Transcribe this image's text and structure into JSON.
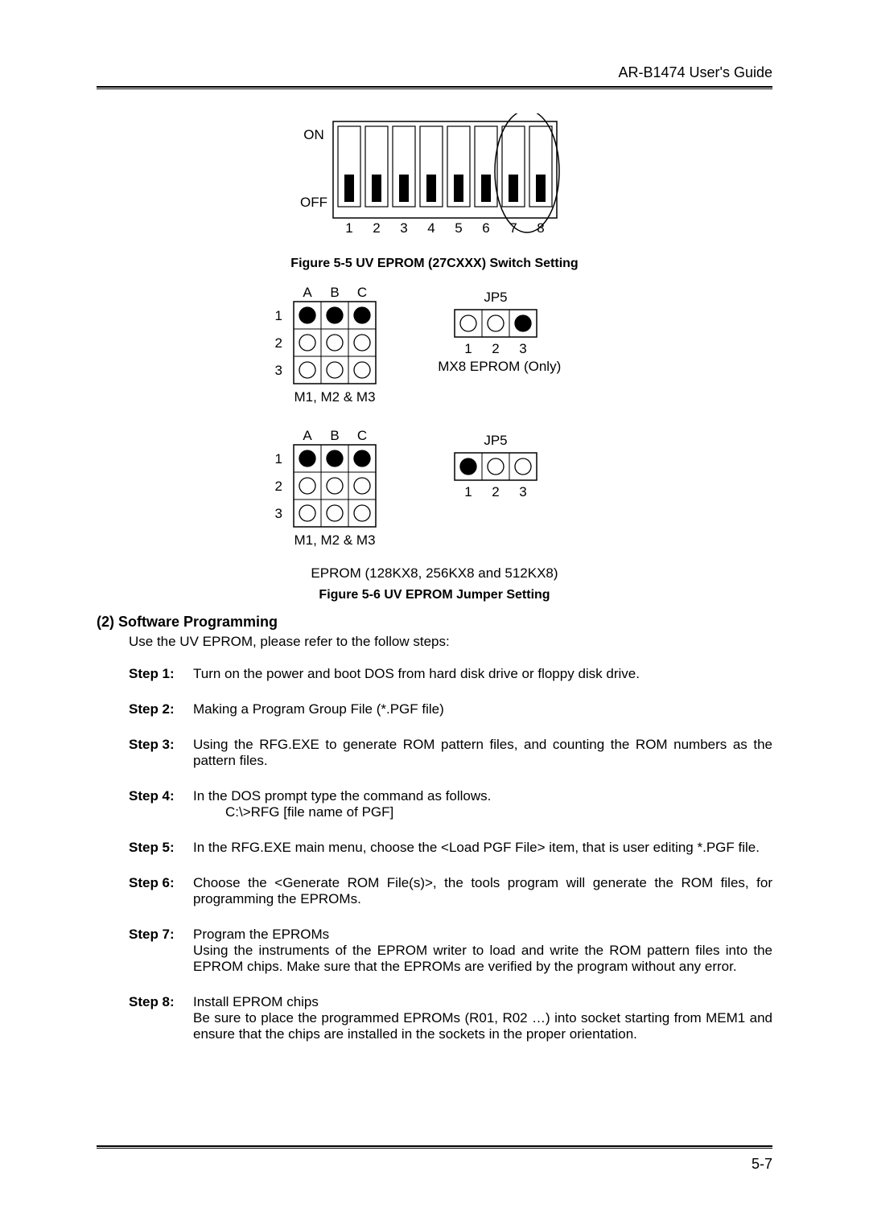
{
  "header": {
    "title": "AR-B1474 User's Guide"
  },
  "dip": {
    "on_label": "ON",
    "off_label": "OFF",
    "num_switches": 8,
    "switch_numbers": [
      "1",
      "2",
      "3",
      "4",
      "5",
      "6",
      "7",
      "8"
    ],
    "positions": [
      "OFF",
      "OFF",
      "OFF",
      "OFF",
      "OFF",
      "OFF",
      "OFF",
      "OFF"
    ],
    "circle_last_two": true,
    "slot_fill": "#ffffff",
    "slot_stroke": "#000000",
    "knob_fill": "#000000",
    "outline_stroke": "#000000",
    "label_fontsize": 17
  },
  "fig5_caption": "Figure 5-5 UV EPROM (27CXXX) Switch Setting",
  "jumper_block_a": {
    "col_labels": [
      "A",
      "B",
      "C"
    ],
    "row_labels": [
      "1",
      "2",
      "3"
    ],
    "pins": [
      [
        true,
        true,
        true
      ],
      [
        false,
        false,
        false
      ],
      [
        false,
        false,
        false
      ]
    ],
    "bottom_label": "M1, M2 & M3",
    "fill_color": "#000000",
    "open_stroke": "#000000",
    "grid_stroke": "#000000"
  },
  "jp5_a": {
    "title": "JP5",
    "labels": [
      "1",
      "2",
      "3"
    ],
    "pins": [
      false,
      false,
      true
    ],
    "note": "1MX8 EPROM (Only)",
    "fill_color": "#000000",
    "open_stroke": "#000000",
    "grid_stroke": "#000000"
  },
  "jumper_block_b": {
    "col_labels": [
      "A",
      "B",
      "C"
    ],
    "row_labels": [
      "1",
      "2",
      "3"
    ],
    "pins": [
      [
        true,
        true,
        true
      ],
      [
        false,
        false,
        false
      ],
      [
        false,
        false,
        false
      ]
    ],
    "bottom_label": "M1, M2 & M3",
    "fill_color": "#000000",
    "open_stroke": "#000000",
    "grid_stroke": "#000000"
  },
  "jp5_b": {
    "title": "JP5",
    "labels": [
      "1",
      "2",
      "3"
    ],
    "pins": [
      true,
      false,
      false
    ],
    "note": "",
    "fill_color": "#000000",
    "open_stroke": "#000000",
    "grid_stroke": "#000000"
  },
  "eprom_line": "EPROM (128KX8, 256KX8 and 512KX8)",
  "fig6_caption": "Figure 5-6 UV EPROM Jumper Setting",
  "section_title": "(2) Software Programming",
  "intro": "Use the UV EPROM, please refer to the follow steps:",
  "steps": [
    {
      "label": "Step 1:",
      "text": "Turn on the power and boot DOS from hard disk drive or floppy disk drive."
    },
    {
      "label": "Step 2:",
      "text": "Making a Program Group File (*.PGF file)"
    },
    {
      "label": "Step 3:",
      "text": "Using the RFG.EXE to generate ROM pattern files, and counting the ROM numbers as the pattern files."
    },
    {
      "label": "Step 4:",
      "text": "In the DOS prompt type the command as follows.",
      "sub": "C:\\>RFG [file name of PGF]"
    },
    {
      "label": "Step 5:",
      "text": "In the RFG.EXE main menu, choose the <Load PGF File> item, that is user editing *.PGF file."
    },
    {
      "label": "Step 6:",
      "text": "Choose the <Generate ROM File(s)>, the tools program will generate the ROM files, for programming the EPROMs."
    },
    {
      "label": "Step 7:",
      "text": "Program the EPROMs",
      "extra": "Using the instruments of the EPROM writer to load and write the ROM pattern files into the EPROM chips.  Make sure that the EPROMs are verified by the program without any error."
    },
    {
      "label": "Step 8:",
      "text": "Install EPROM chips",
      "extra": "Be sure to place the programmed EPROMs (R01, R02 …) into socket starting from MEM1 and ensure that the chips are installed in the sockets in the proper orientation."
    }
  ],
  "page_number": "5-7"
}
